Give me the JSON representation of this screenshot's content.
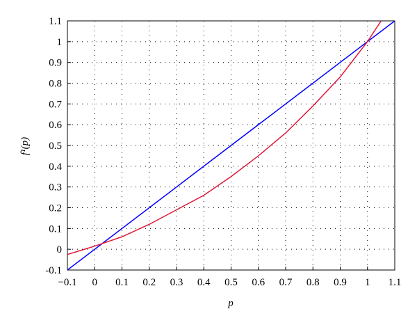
{
  "chart_data": {
    "type": "line",
    "x_label": "p",
    "y_label": "f¹(p)",
    "xlim": [
      -0.1,
      1.1
    ],
    "ylim": [
      -0.1,
      1.1
    ],
    "xticks": [
      {
        "value": -0.1,
        "label": "−0.1"
      },
      0,
      0.1,
      0.2,
      0.3,
      0.4,
      0.5,
      0.6,
      0.7,
      0.8,
      0.9,
      1,
      1.1
    ],
    "yticks": [
      -0.1,
      0,
      0.1,
      0.2,
      0.3,
      0.4,
      0.5,
      0.6,
      0.7,
      0.8,
      0.9,
      1,
      1.1
    ],
    "grid": true,
    "series": [
      {
        "color": "#0000ff",
        "x": [
          -0.1,
          1.1
        ],
        "values": [
          -0.1,
          1.1
        ]
      },
      {
        "color": "#e0173a",
        "x": [
          -0.1,
          0,
          0.1,
          0.2,
          0.3,
          0.4,
          0.5,
          0.6,
          0.7,
          0.8,
          0.9,
          1.0,
          1.05
        ],
        "values": [
          -0.025,
          0.015,
          0.06,
          0.12,
          0.19,
          0.26,
          0.35,
          0.45,
          0.56,
          0.69,
          0.83,
          1.0,
          1.1
        ]
      }
    ]
  }
}
